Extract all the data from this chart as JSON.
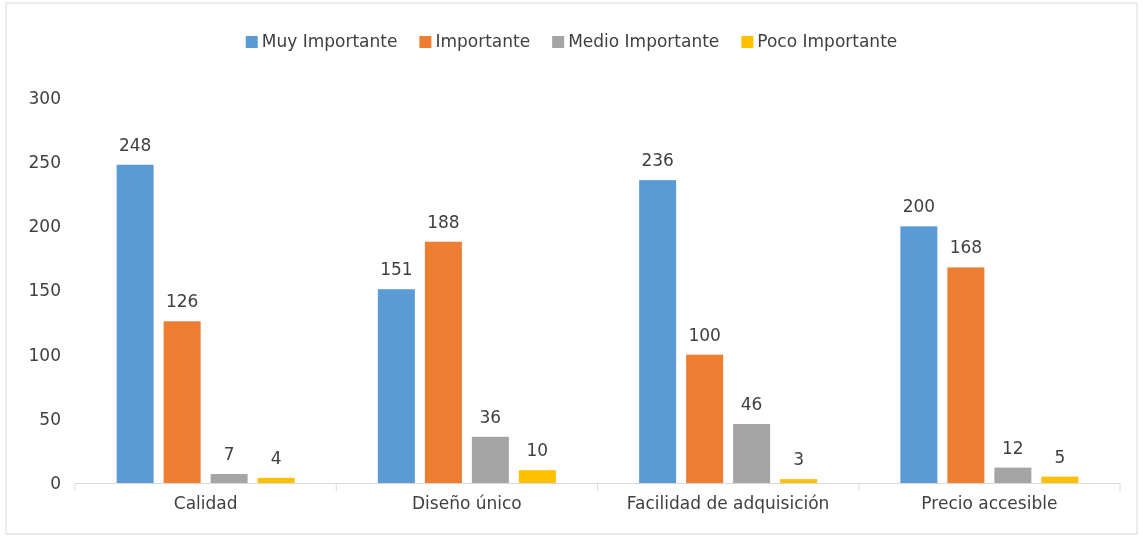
{
  "chart_data": {
    "type": "bar",
    "categories": [
      "Calidad",
      "Diseño único",
      "Facilidad de adquisición",
      "Precio accesible"
    ],
    "series": [
      {
        "name": "Muy Importante",
        "color": "#5b9bd5",
        "values": [
          248,
          151,
          236,
          200
        ]
      },
      {
        "name": "Importante",
        "color": "#ed7d31",
        "values": [
          126,
          188,
          100,
          168
        ]
      },
      {
        "name": "Medio Importante",
        "color": "#a5a5a5",
        "values": [
          7,
          36,
          46,
          12
        ]
      },
      {
        "name": "Poco Importante",
        "color": "#ffc000",
        "values": [
          4,
          10,
          3,
          5
        ]
      }
    ],
    "ylim": [
      0,
      300
    ],
    "yticks": [
      0,
      50,
      100,
      150,
      200,
      250,
      300
    ],
    "grid": false,
    "legend": "top",
    "data_labels": true
  }
}
